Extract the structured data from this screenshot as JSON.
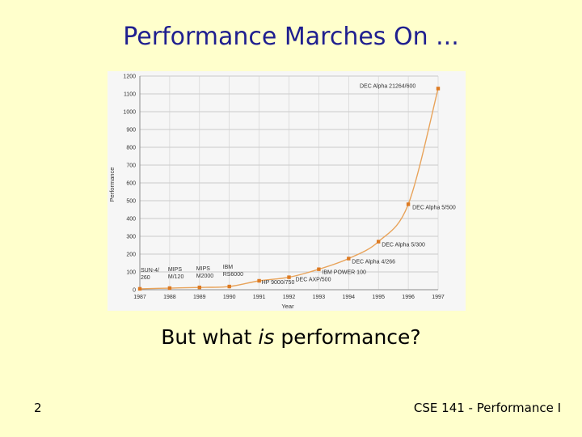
{
  "slide": {
    "title": "Performance Marches On ...",
    "subtitle_pre": "But what ",
    "subtitle_em": "is",
    "subtitle_post": " performance?",
    "number": "2",
    "footer": "CSE 141 - Performance I"
  },
  "chart_data": {
    "type": "line",
    "title": "",
    "xlabel": "Year",
    "ylabel": "Performance",
    "xlim": [
      1987,
      1997
    ],
    "ylim": [
      0,
      1200
    ],
    "x_ticks": [
      "1987",
      "1988",
      "1989",
      "1990",
      "1991",
      "1992",
      "1993",
      "1994",
      "1995",
      "1996",
      "1997"
    ],
    "y_ticks": [
      0,
      100,
      200,
      300,
      400,
      500,
      600,
      700,
      800,
      900,
      1000,
      1100,
      1200
    ],
    "grid": true,
    "line_color": "#e8a35a",
    "marker_color": "#dd7a22",
    "points": [
      {
        "x": 1987,
        "y": 5,
        "label_lines": [
          "SUN-4/",
          "260"
        ]
      },
      {
        "x": 1988,
        "y": 9,
        "label_lines": [
          "MIPS",
          "M/120"
        ]
      },
      {
        "x": 1989,
        "y": 13,
        "label_lines": [
          "MIPS",
          "M2000"
        ]
      },
      {
        "x": 1990,
        "y": 18,
        "label_lines": [
          "IBM",
          "RS6000"
        ]
      },
      {
        "x": 1991,
        "y": 50,
        "label_lines": [
          "HP 9000/750"
        ]
      },
      {
        "x": 1992,
        "y": 70,
        "label_lines": [
          "DEC AXP/500"
        ]
      },
      {
        "x": 1993,
        "y": 115,
        "label_lines": [
          "IBM POWER 100"
        ]
      },
      {
        "x": 1994,
        "y": 175,
        "label_lines": [
          "DEC Alpha 4/266"
        ]
      },
      {
        "x": 1995,
        "y": 270,
        "label_lines": [
          "DEC Alpha 5/300"
        ]
      },
      {
        "x": 1996,
        "y": 480,
        "label_lines": [
          "DEC Alpha 5/500"
        ]
      },
      {
        "x": 1997,
        "y": 1130,
        "label_lines": [
          "DEC Alpha 21264/600"
        ]
      }
    ]
  }
}
